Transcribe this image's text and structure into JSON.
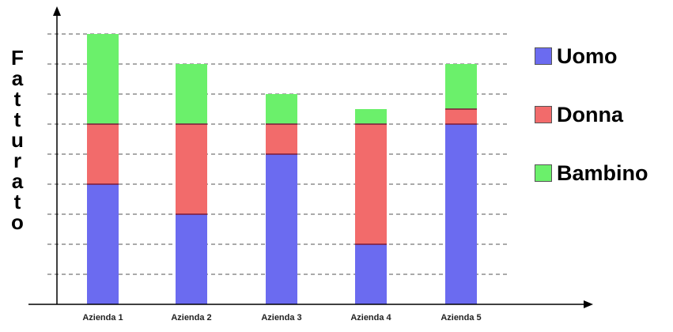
{
  "chart_data": {
    "type": "bar",
    "stacked": true,
    "title": "",
    "xlabel": "",
    "ylabel": "Fatturato",
    "ylim": [
      0,
      9
    ],
    "grid": true,
    "legend_position": "right",
    "categories": [
      "Azienda 1",
      "Azienda 2",
      "Azienda 3",
      "Azienda 4",
      "Azienda 5"
    ],
    "series": [
      {
        "name": "Uomo",
        "color": "#6b6bf0",
        "values": [
          4,
          3,
          5,
          2,
          6
        ]
      },
      {
        "name": "Donna",
        "color": "#f26b6b",
        "values": [
          2,
          3,
          1,
          4,
          0.5
        ]
      },
      {
        "name": "Bambino",
        "color": "#6bf06b",
        "values": [
          3,
          2,
          1,
          0.5,
          1.5
        ]
      }
    ]
  }
}
